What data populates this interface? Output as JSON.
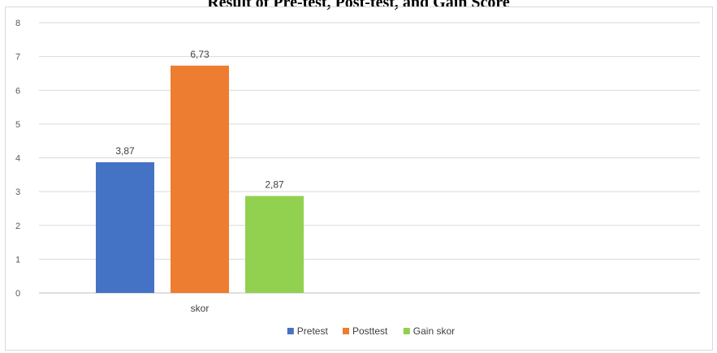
{
  "chart_data": {
    "type": "bar",
    "title": "Result of Pre-test, Post-test, and Gain Score",
    "categories": [
      "skor"
    ],
    "series": [
      {
        "name": "Pretest",
        "values": [
          3.87
        ],
        "label": "3,87",
        "color": "#4472c4"
      },
      {
        "name": "Posttest",
        "values": [
          6.73
        ],
        "label": "6,73",
        "color": "#ed7d31"
      },
      {
        "name": "Gain skor",
        "values": [
          2.87
        ],
        "label": "2,87",
        "color": "#92d050"
      }
    ],
    "ylim": [
      0,
      8
    ],
    "yticks": [
      "0",
      "1",
      "2",
      "3",
      "4",
      "5",
      "6",
      "7",
      "8"
    ],
    "grid": true,
    "legend": "bottom",
    "xlabel": "",
    "ylabel": ""
  }
}
